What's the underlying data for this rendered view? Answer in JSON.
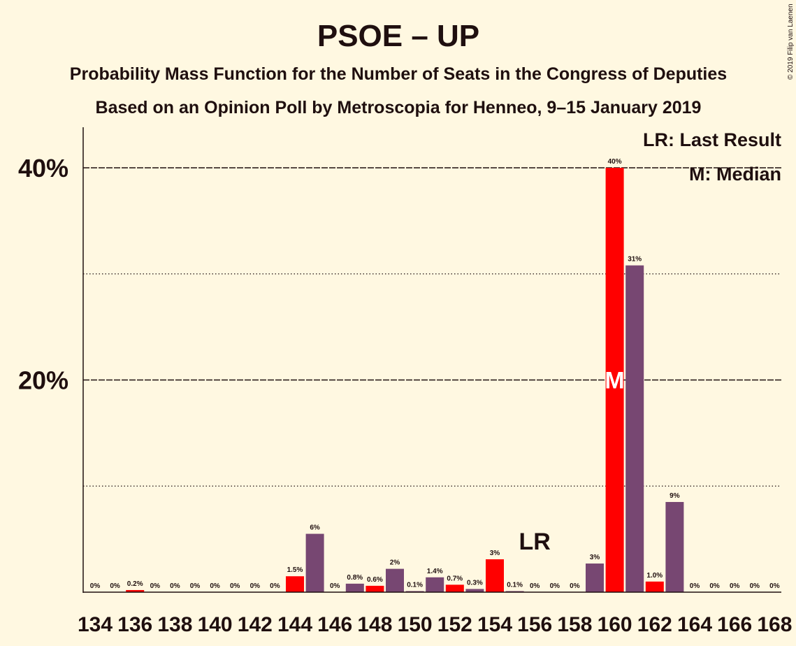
{
  "chart_data": {
    "type": "bar",
    "title": "PSOE – UP",
    "subtitle": "Probability Mass Function for the Number of Seats in the Congress of Deputies",
    "subtitle2": "Based on an Opinion Poll by Metroscopia for Henneo, 9–15 January 2019",
    "copyright": "© 2019 Filip van Laenen",
    "legend": {
      "lr": "LR: Last Result",
      "m": "M: Median",
      "placement": "top-right"
    },
    "ylim": [
      0,
      44
    ],
    "y_major_ticks": [
      {
        "value": 20,
        "label": "20%"
      },
      {
        "value": 40,
        "label": "40%"
      }
    ],
    "y_minor_ticks": [
      10,
      30
    ],
    "categories": [
      134,
      135,
      136,
      137,
      138,
      139,
      140,
      141,
      142,
      143,
      144,
      145,
      146,
      147,
      148,
      149,
      150,
      151,
      152,
      153,
      154,
      155,
      156,
      157,
      158,
      159,
      160,
      161,
      162,
      163,
      164,
      165,
      166,
      167,
      168
    ],
    "x_tick_labels": [
      "134",
      "136",
      "138",
      "140",
      "142",
      "144",
      "146",
      "148",
      "150",
      "152",
      "154",
      "156",
      "158",
      "160",
      "162",
      "164",
      "166",
      "168"
    ],
    "values": [
      0,
      0,
      0.2,
      0,
      0,
      0,
      0,
      0,
      0,
      0,
      1.5,
      5.5,
      0,
      0.8,
      0.6,
      2.2,
      0.1,
      1.4,
      0.7,
      0.3,
      3.1,
      0.1,
      0,
      0,
      0,
      2.7,
      40,
      30.8,
      1.0,
      8.5,
      0,
      0,
      0,
      0,
      0
    ],
    "data_labels": [
      "0%",
      "0%",
      "0.2%",
      "0%",
      "0%",
      "0%",
      "0%",
      "0%",
      "0%",
      "0%",
      "1.5%",
      "6%",
      "0%",
      "0.8%",
      "0.6%",
      "2%",
      "0.1%",
      "1.4%",
      "0.7%",
      "0.3%",
      "3%",
      "0.1%",
      "0%",
      "0%",
      "0%",
      "3%",
      "40%",
      "31%",
      "1.0%",
      "9%",
      "0%",
      "0%",
      "0%",
      "0%",
      "0%"
    ],
    "colors": {
      "purple": "#774772",
      "red": "#ff0000",
      "background": "#fff8e1",
      "text": "#1f0f0f"
    },
    "highlight_red": [
      136,
      144,
      148,
      152,
      154,
      160,
      162
    ],
    "last_result": {
      "seat": 156,
      "label": "LR"
    },
    "median": {
      "seat": 160,
      "label": "M"
    }
  }
}
